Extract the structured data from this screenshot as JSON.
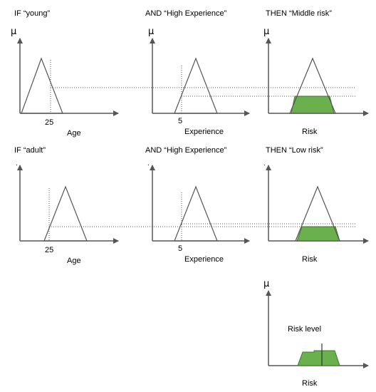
{
  "rule1": {
    "cond1": "IF “young”",
    "cond2": "AND “High Experience”",
    "conclusion": "THEN “Middle risk”",
    "age_tick": "25",
    "age_label": "Age",
    "exp_tick": "5",
    "exp_label": "Experience",
    "risk_label": "Risk",
    "mu_symbol": "μ"
  },
  "rule2": {
    "cond1": "IF “adult”",
    "cond2": "AND “High Experience”",
    "conclusion": "THEN “Low risk”",
    "age_tick": "25",
    "age_label": "Age",
    "exp_tick": "5",
    "exp_label": "Experience",
    "risk_label": "Risk",
    "axis_mark": "."
  },
  "aggregation": {
    "mu_symbol": "μ",
    "result_label": "Risk level",
    "axis_label": "Risk"
  },
  "colors": {
    "fill_green": "#6ab04c",
    "line": "#555555"
  }
}
